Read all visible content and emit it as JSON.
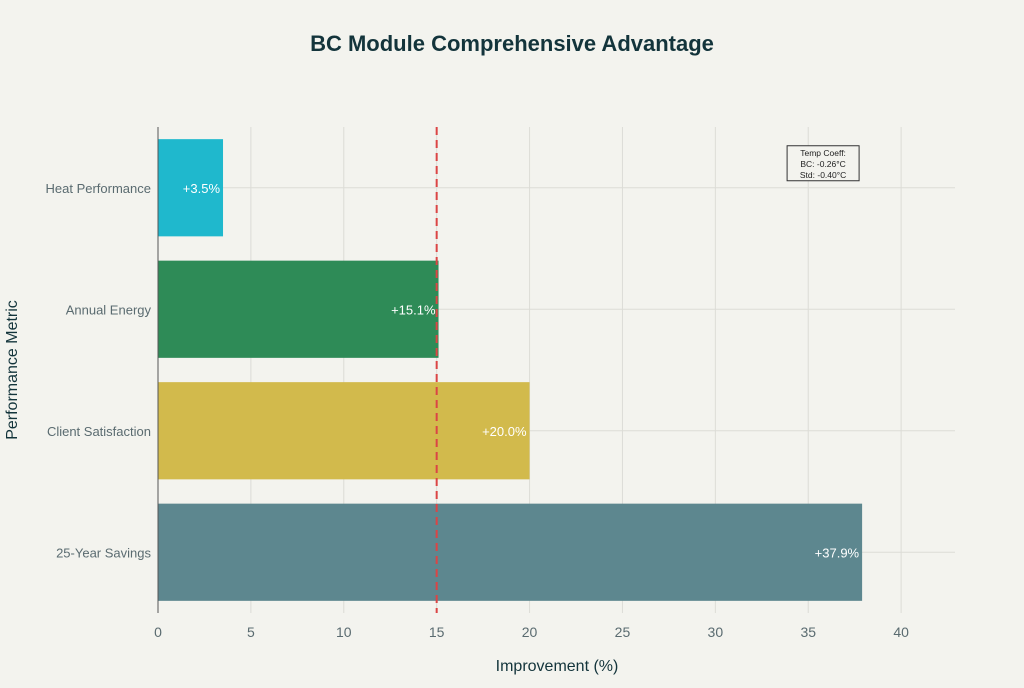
{
  "chart_data": {
    "type": "bar",
    "orientation": "horizontal",
    "title": "BC Module Comprehensive Advantage",
    "xlabel": "Improvement (%)",
    "ylabel": "Performance Metric",
    "categories": [
      "Heat Performance",
      "Annual Energy",
      "Client Satisfaction",
      "25-Year Savings"
    ],
    "values": [
      3.5,
      15.1,
      20.0,
      37.9
    ],
    "data_labels": [
      "+3.5%",
      "+15.1%",
      "+20.0%",
      "+37.9%"
    ],
    "colors": [
      "#1FB8CD",
      "#2E8B57",
      "#D2BA4C",
      "#5D878F"
    ],
    "xlim": [
      0,
      42.9
    ],
    "xticks": [
      0,
      5,
      10,
      15,
      20,
      25,
      30,
      35,
      40
    ],
    "grid": true,
    "reference_line": {
      "x": 15,
      "color": "#DB4545",
      "style": "dashed"
    },
    "annotation": {
      "lines": [
        "Temp Coeff:",
        "BC: -0.26°C",
        "Std: -0.40°C"
      ],
      "x": 35.8,
      "category": "Heat Performance"
    }
  }
}
